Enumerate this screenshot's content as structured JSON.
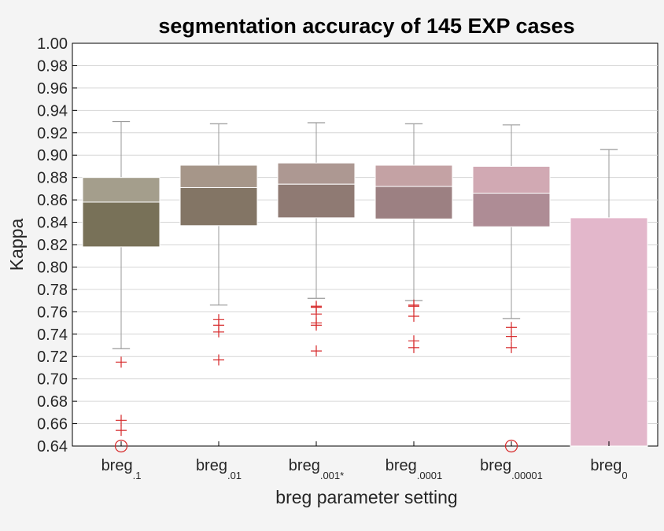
{
  "chart_data": {
    "type": "box",
    "title": "segmentation accuracy of 145 EXP cases",
    "xlabel": "breg parameter setting",
    "ylabel": "Kappa",
    "ylim": [
      0.64,
      1.0
    ],
    "y_ticks": [
      "0.64",
      "0.66",
      "0.68",
      "0.70",
      "0.72",
      "0.74",
      "0.76",
      "0.78",
      "0.80",
      "0.82",
      "0.84",
      "0.86",
      "0.88",
      "0.90",
      "0.92",
      "0.94",
      "0.96",
      "0.98",
      "1.00"
    ],
    "grid": true,
    "categories": [
      {
        "base": "breg",
        "sub": ".1"
      },
      {
        "base": "breg",
        "sub": ".01"
      },
      {
        "base": "breg",
        "sub": ".001*"
      },
      {
        "base": "breg",
        "sub": ".0001"
      },
      {
        "base": "breg",
        "sub": ".00001"
      },
      {
        "base": "breg",
        "sub": "0"
      }
    ],
    "boxes": [
      {
        "whisker_low": 0.727,
        "q1": 0.818,
        "median": 0.858,
        "q3": 0.88,
        "whisker_high": 0.93,
        "outliers": [
          0.715,
          0.663,
          0.654
        ],
        "off_scale_low": true,
        "upper_color": "#a49e8c",
        "lower_color": "#787158"
      },
      {
        "whisker_low": 0.766,
        "q1": 0.837,
        "median": 0.871,
        "q3": 0.891,
        "whisker_high": 0.928,
        "outliers": [
          0.753,
          0.748,
          0.742,
          0.717
        ],
        "off_scale_low": false,
        "upper_color": "#a69689",
        "lower_color": "#837565"
      },
      {
        "whisker_low": 0.772,
        "q1": 0.844,
        "median": 0.874,
        "q3": 0.893,
        "whisker_high": 0.929,
        "outliers": [
          0.765,
          0.764,
          0.758,
          0.75,
          0.748,
          0.725
        ],
        "off_scale_low": false,
        "upper_color": "#ad9892",
        "lower_color": "#8f7a73"
      },
      {
        "whisker_low": 0.77,
        "q1": 0.843,
        "median": 0.872,
        "q3": 0.891,
        "whisker_high": 0.928,
        "outliers": [
          0.766,
          0.765,
          0.756,
          0.734,
          0.728
        ],
        "off_scale_low": false,
        "upper_color": "#c4a2a4",
        "lower_color": "#9c8082"
      },
      {
        "whisker_low": 0.754,
        "q1": 0.836,
        "median": 0.866,
        "q3": 0.89,
        "whisker_high": 0.927,
        "outliers": [
          0.746,
          0.738,
          0.728
        ],
        "off_scale_low": true,
        "upper_color": "#d1a9b3",
        "lower_color": "#ae8c95"
      },
      {
        "whisker_low": 0.64,
        "q1": 0.64,
        "median": 0.844,
        "q3": 0.844,
        "whisker_high": 0.905,
        "outliers": [],
        "off_scale_low": false,
        "upper_color": "#e3b7cb",
        "lower_color": "#e3b7cb"
      }
    ],
    "colors": {
      "outlier": "#d62728",
      "whisker": "#9a9a9a",
      "grid": "#d6d6d6",
      "background": "#f4f4f4",
      "plot_background": "#ffffff"
    }
  }
}
